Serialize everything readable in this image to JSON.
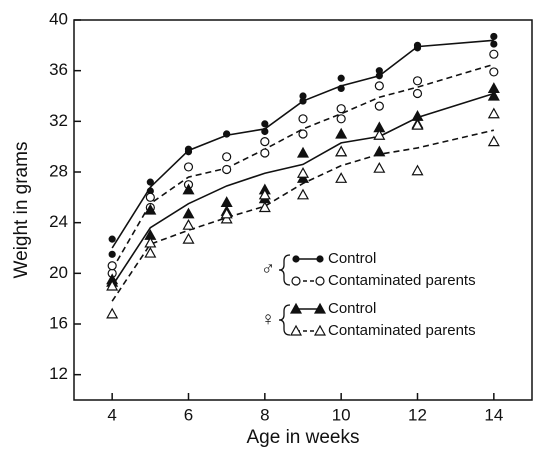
{
  "chart_data": {
    "type": "scatter",
    "xlabel": "Age in weeks",
    "ylabel": "Weight in grams",
    "xlim": [
      3,
      15
    ],
    "ylim": [
      10,
      40
    ],
    "xticks": [
      4,
      6,
      8,
      10,
      12,
      14
    ],
    "yticks": [
      12,
      16,
      20,
      24,
      28,
      32,
      36,
      40
    ],
    "color": "#111111",
    "x": [
      4,
      4,
      5,
      5,
      6,
      6,
      7,
      7,
      8,
      8,
      9,
      9,
      10,
      10,
      11,
      11,
      12,
      12,
      14,
      14
    ],
    "fit_x": [
      4,
      5,
      6,
      7,
      8,
      9,
      10,
      11,
      12,
      14
    ],
    "groups": [
      {
        "label": "♂",
        "series": [
          {
            "name": "Control",
            "marker": "circle",
            "filled": true,
            "dashed": false,
            "values": [
              22.7,
              21.5,
              27.2,
              26.5,
              29.8,
              29.6,
              31.0,
              31.0,
              31.8,
              31.2,
              34.0,
              33.6,
              35.4,
              34.6,
              36.0,
              35.6,
              38.0,
              37.8,
              38.7,
              38.1
            ],
            "fit_values": [
              22.0,
              26.8,
              29.7,
              30.9,
              31.4,
              33.6,
              34.8,
              35.6,
              37.9,
              38.4
            ]
          },
          {
            "name": "Contaminated parents",
            "marker": "circle",
            "filled": false,
            "dashed": true,
            "values": [
              20.0,
              20.6,
              25.2,
              26.0,
              28.4,
              27.0,
              29.2,
              28.2,
              30.4,
              29.5,
              32.2,
              31.0,
              33.0,
              32.2,
              34.8,
              33.2,
              35.2,
              34.2,
              37.3,
              35.9
            ],
            "fit_values": [
              20.3,
              25.5,
              27.6,
              28.3,
              29.8,
              31.4,
              32.6,
              33.9,
              34.7,
              36.5
            ]
          }
        ]
      },
      {
        "label": "♀",
        "series": [
          {
            "name": "Control",
            "marker": "triangle",
            "filled": true,
            "dashed": false,
            "values": [
              19.5,
              19.3,
              25.0,
              23.0,
              24.7,
              26.6,
              25.6,
              24.9,
              26.6,
              25.9,
              29.5,
              27.5,
              31.0,
              29.6,
              31.5,
              29.6,
              32.4,
              31.8,
              34.6,
              34.0
            ],
            "fit_values": [
              19.0,
              23.6,
              25.5,
              26.9,
              27.9,
              28.6,
              30.3,
              30.8,
              32.3,
              34.2
            ]
          },
          {
            "name": "Contaminated parents",
            "marker": "triangle",
            "filled": false,
            "dashed": true,
            "values": [
              16.8,
              19.0,
              21.6,
              22.4,
              22.7,
              23.8,
              24.3,
              24.7,
              25.2,
              26.2,
              26.2,
              27.9,
              27.5,
              29.6,
              28.3,
              30.9,
              28.1,
              31.7,
              30.4,
              32.6
            ],
            "fit_values": [
              17.8,
              22.3,
              23.4,
              24.4,
              25.3,
              27.1,
              28.5,
              29.4,
              29.9,
              31.3
            ]
          }
        ]
      }
    ]
  }
}
